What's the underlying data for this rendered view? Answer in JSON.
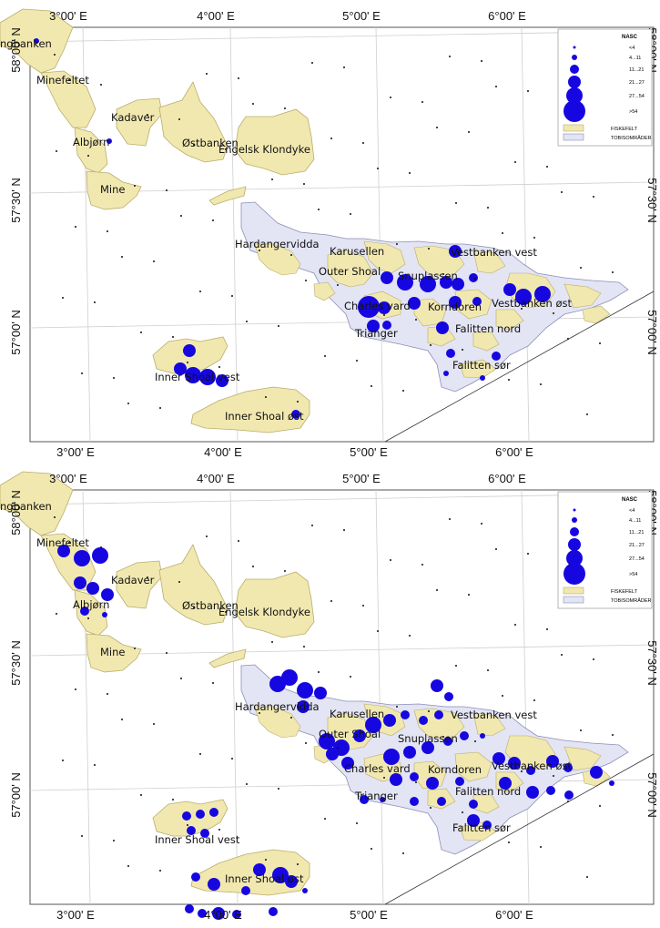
{
  "colors": {
    "fishing_field": "#f1e8b0",
    "fishing_field_stroke": "#b9ad6a",
    "sandeel_area": "#e3e4f4",
    "sandeel_area_stroke": "#8c8fb6",
    "nasc_point": "#1607e0",
    "grid": "#cfcfcf",
    "frame": "#555555"
  },
  "axes": {
    "lon_labels": [
      "3°00' E",
      "4°00' E",
      "5°00' E",
      "6°00' E"
    ],
    "lat_labels": [
      "58°00' N",
      "57°30' N",
      "57°00' N"
    ]
  },
  "legend": {
    "title": "NASC",
    "classes": [
      "<4",
      "4...11",
      "11...21",
      "21...27",
      "27...54",
      ">54"
    ],
    "fishing_field_label": "FISKEFELT",
    "sandeel_area_label": "TOBISOMRÅDER"
  },
  "place_labels": [
    "ngbanken",
    "Minefeltet",
    "Kadaver",
    "Albjørn",
    "Østbanken",
    "Engelsk Klondyke",
    "Mine",
    "Hardangervidda",
    "Karusellen",
    "Vestbanken vest",
    "Outer Shoal",
    "Snuplassen",
    "Charles vard",
    "Korndoren",
    "Vestbanken øst",
    "Trianger",
    "Falitten nord",
    "Falitten sør",
    "Inner Shoal vest",
    "Inner Shoal øst"
  ],
  "place_labels_bottom": [
    "ngbanken",
    "Minefeltet",
    "Kadaver",
    "Albjørn",
    "Østbanken",
    "Engelsk Klondyke",
    "Mine",
    "Hardangervidda",
    "Karusellen",
    "Vestbanken vest",
    "Outer Shoal",
    "Snuplassen",
    "Charles vard",
    "Korndoren",
    "Vestbanken øst",
    "Trianger",
    "Falitten nord",
    "Falitten sør",
    "Inner Shoal vest",
    "Inner Shoal øst"
  ]
}
